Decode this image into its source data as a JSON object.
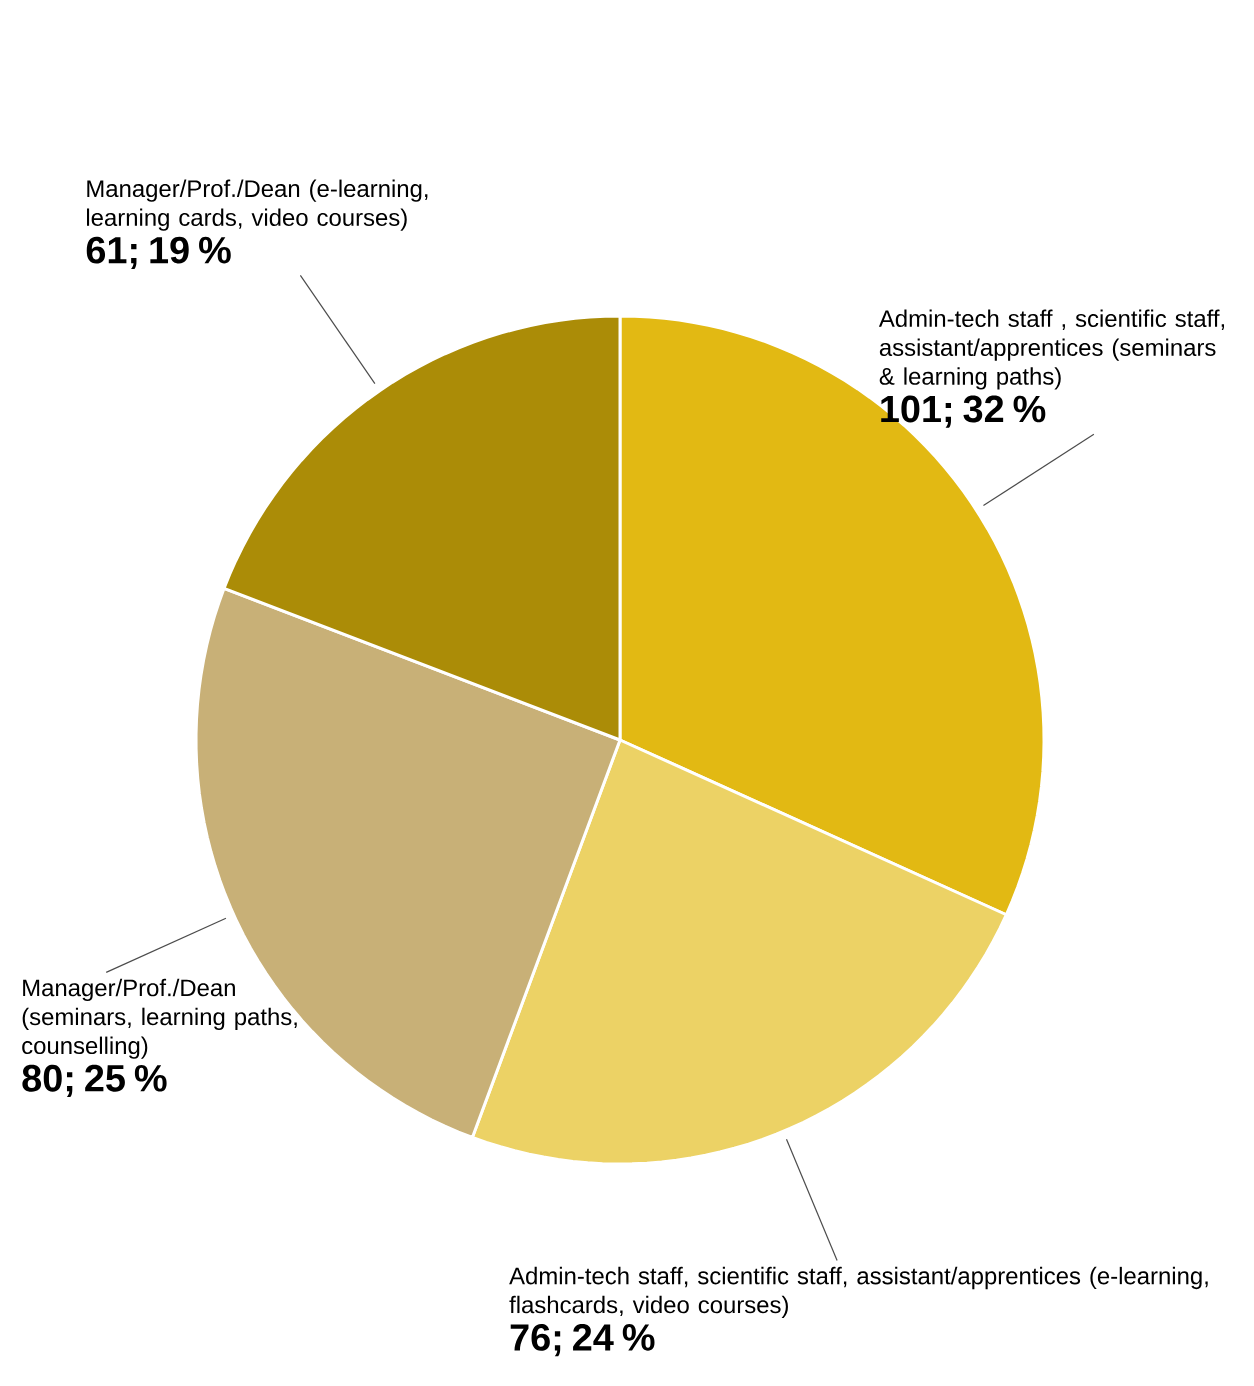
{
  "chart_data": {
    "type": "pie",
    "categories": [
      "Admin-tech staff , scientific staff, assistant/apprentices (seminars & learning paths)",
      "Admin-tech staff, scientific staff, assistant/apprentices (e-learning, flashcards, video courses)",
      "Manager/Prof./Dean (seminars, learning paths, counselling)",
      "Manager/Prof./Dean (e-learning, learning cards, video courses)"
    ],
    "values": [
      101,
      76,
      80,
      61
    ],
    "value_labels": [
      "101; 32 %",
      "76; 24 %",
      "80; 25 %",
      "61; 19 %"
    ],
    "colors": [
      "#e2b913",
      "#ecd265",
      "#c8b077",
      "#ab8c07"
    ]
  }
}
